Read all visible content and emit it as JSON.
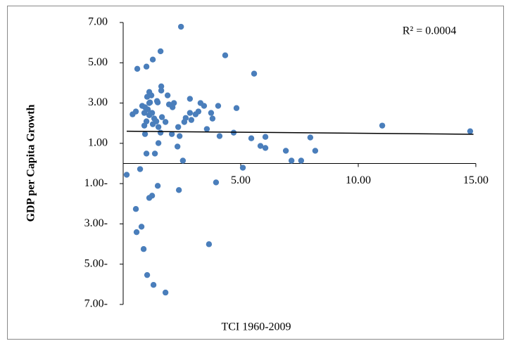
{
  "chart_data": {
    "type": "scatter",
    "annotation": "R² = 0.0004",
    "y_label": "GDP per Capita Growth",
    "x_label": "TCI 1960-2009",
    "color": "#4a7ebb",
    "xlim": [
      0,
      15
    ],
    "ylim": [
      -7,
      7
    ],
    "xticks": [
      {
        "value": 5,
        "label": "5.00"
      },
      {
        "value": 10,
        "label": "10.00"
      },
      {
        "value": 15,
        "label": "15.00"
      }
    ],
    "yticks": [
      {
        "value": 7,
        "label": "7.00"
      },
      {
        "value": 5,
        "label": "5.00"
      },
      {
        "value": 3,
        "label": "3.00"
      },
      {
        "value": 1,
        "label": "1.00"
      },
      {
        "value": -1,
        "label": "1.00-"
      },
      {
        "value": -3,
        "label": "3.00-"
      },
      {
        "value": -5,
        "label": "5.00-"
      },
      {
        "value": -7,
        "label": "7.00-"
      }
    ],
    "x": [
      0.15,
      0.4,
      0.54,
      0.6,
      0.72,
      0.54,
      0.57,
      0.78,
      0.87,
      0.99,
      1.26,
      1.59,
      2.46,
      4.34,
      5.57,
      1.02,
      1.11,
      1.2,
      1.62,
      1.62,
      1.89,
      0.93,
      0.81,
      0.9,
      1.05,
      1.11,
      1.23,
      1.32,
      1.41,
      1.47,
      1.44,
      1.14,
      0.99,
      0.9,
      0.93,
      0.99,
      1.35,
      1.5,
      1.5,
      1.59,
      1.8,
      1.95,
      2.1,
      2.16,
      2.07,
      2.31,
      2.34,
      2.4,
      2.54,
      2.6,
      2.66,
      2.84,
      2.84,
      2.9,
      3.08,
      3.2,
      3.29,
      3.44,
      3.56,
      3.74,
      3.8,
      4.04,
      4.1,
      4.7,
      4.82,
      5.09,
      5.45,
      5.84,
      6.05,
      6.05,
      6.92,
      7.16,
      7.57,
      7.96,
      8.17,
      11.02,
      14.76,
      3.95,
      3.65,
      2.37,
      1.47,
      1.23,
      1.11,
      1.02,
      1.29,
      1.8,
      1.65,
      1.26,
      1.11
    ],
    "y": [
      -0.56,
      2.44,
      2.58,
      4.7,
      -0.28,
      -2.26,
      -3.41,
      -3.14,
      -4.25,
      4.81,
      5.16,
      5.57,
      6.79,
      5.37,
      4.46,
      3.31,
      3.55,
      3.38,
      3.83,
      3.62,
      3.38,
      2.79,
      2.86,
      2.51,
      2.68,
      2.4,
      2.51,
      2.23,
      2.09,
      3.03,
      3.1,
      3.03,
      2.09,
      1.88,
      1.46,
      0.49,
      0.49,
      1.01,
      1.81,
      1.53,
      2.06,
      2.93,
      2.79,
      3.0,
      1.46,
      0.84,
      1.81,
      1.36,
      0.14,
      2.06,
      2.26,
      3.21,
      2.51,
      2.16,
      2.44,
      2.58,
      3.0,
      2.86,
      1.71,
      2.51,
      2.23,
      2.86,
      1.36,
      1.53,
      2.75,
      -0.21,
      1.25,
      0.87,
      1.32,
      0.77,
      0.63,
      0.14,
      0.14,
      1.29,
      0.63,
      1.88,
      1.6,
      -0.94,
      -4.01,
      -1.32,
      -1.11,
      -1.6,
      -1.71,
      -5.54,
      -6.03,
      -6.41,
      2.3,
      1.95,
      3.0
    ],
    "trendline": {
      "x": [
        0.15,
        14.9
      ],
      "y": [
        1.6,
        1.45
      ]
    }
  }
}
